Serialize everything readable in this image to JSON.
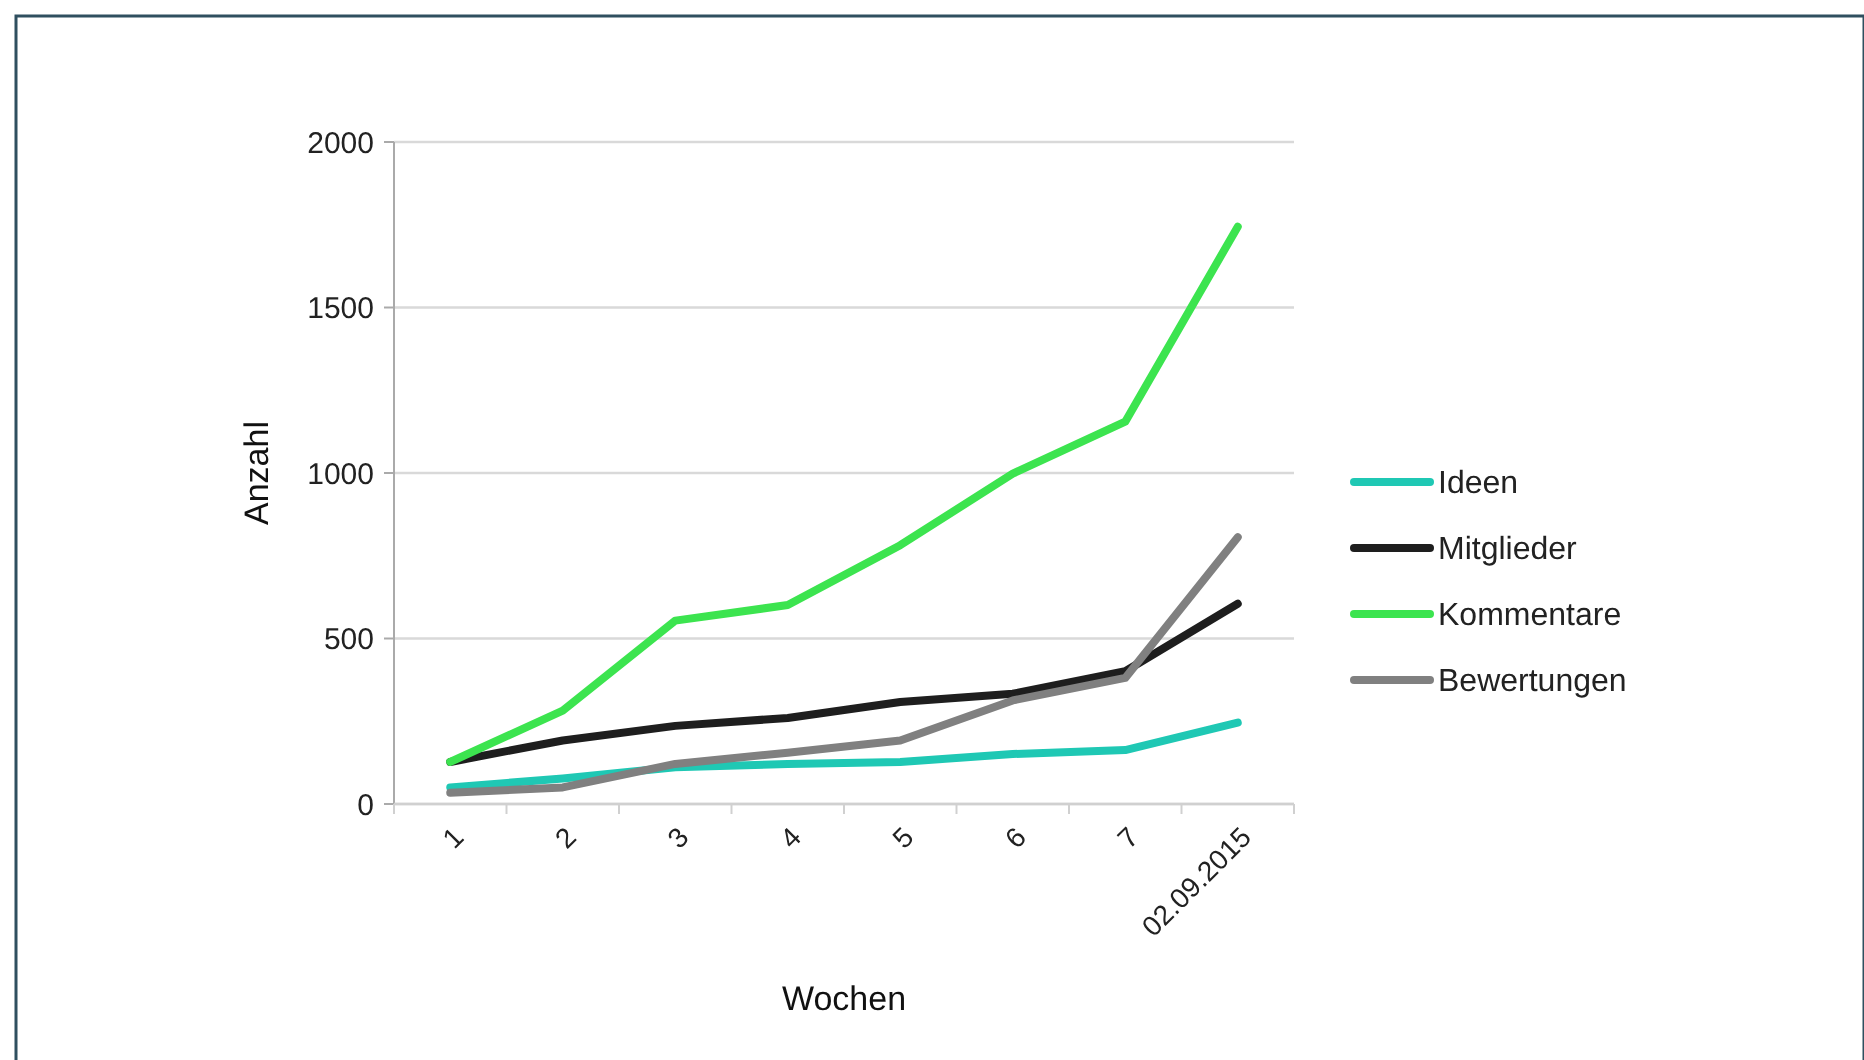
{
  "chart_data": {
    "type": "line",
    "xlabel": "Wochen",
    "ylabel": "Anzahl",
    "categories": [
      "1",
      "2",
      "3",
      "4",
      "5",
      "6",
      "7",
      "02.09.2015"
    ],
    "series": [
      {
        "name": "Ideen",
        "color": "#1fc8b4",
        "values": [
          50,
          77,
          111,
          121,
          127,
          151,
          163,
          246
        ]
      },
      {
        "name": "Mitglieder",
        "color": "#1e1e1e",
        "values": [
          127,
          192,
          236,
          260,
          308,
          333,
          401,
          605
        ]
      },
      {
        "name": "Kommentare",
        "color": "#3ce44f",
        "values": [
          127,
          282,
          554,
          601,
          782,
          998,
          1155,
          1744
        ]
      },
      {
        "name": "Bewertungen",
        "color": "#808080",
        "values": [
          34,
          50,
          121,
          155,
          192,
          313,
          381,
          806
        ]
      }
    ],
    "ylim": [
      0,
      2000
    ],
    "yticks": [
      0,
      500,
      1000,
      1500,
      2000
    ],
    "grid": "y",
    "legend": "right",
    "marker": "none",
    "line_style": "solid"
  }
}
